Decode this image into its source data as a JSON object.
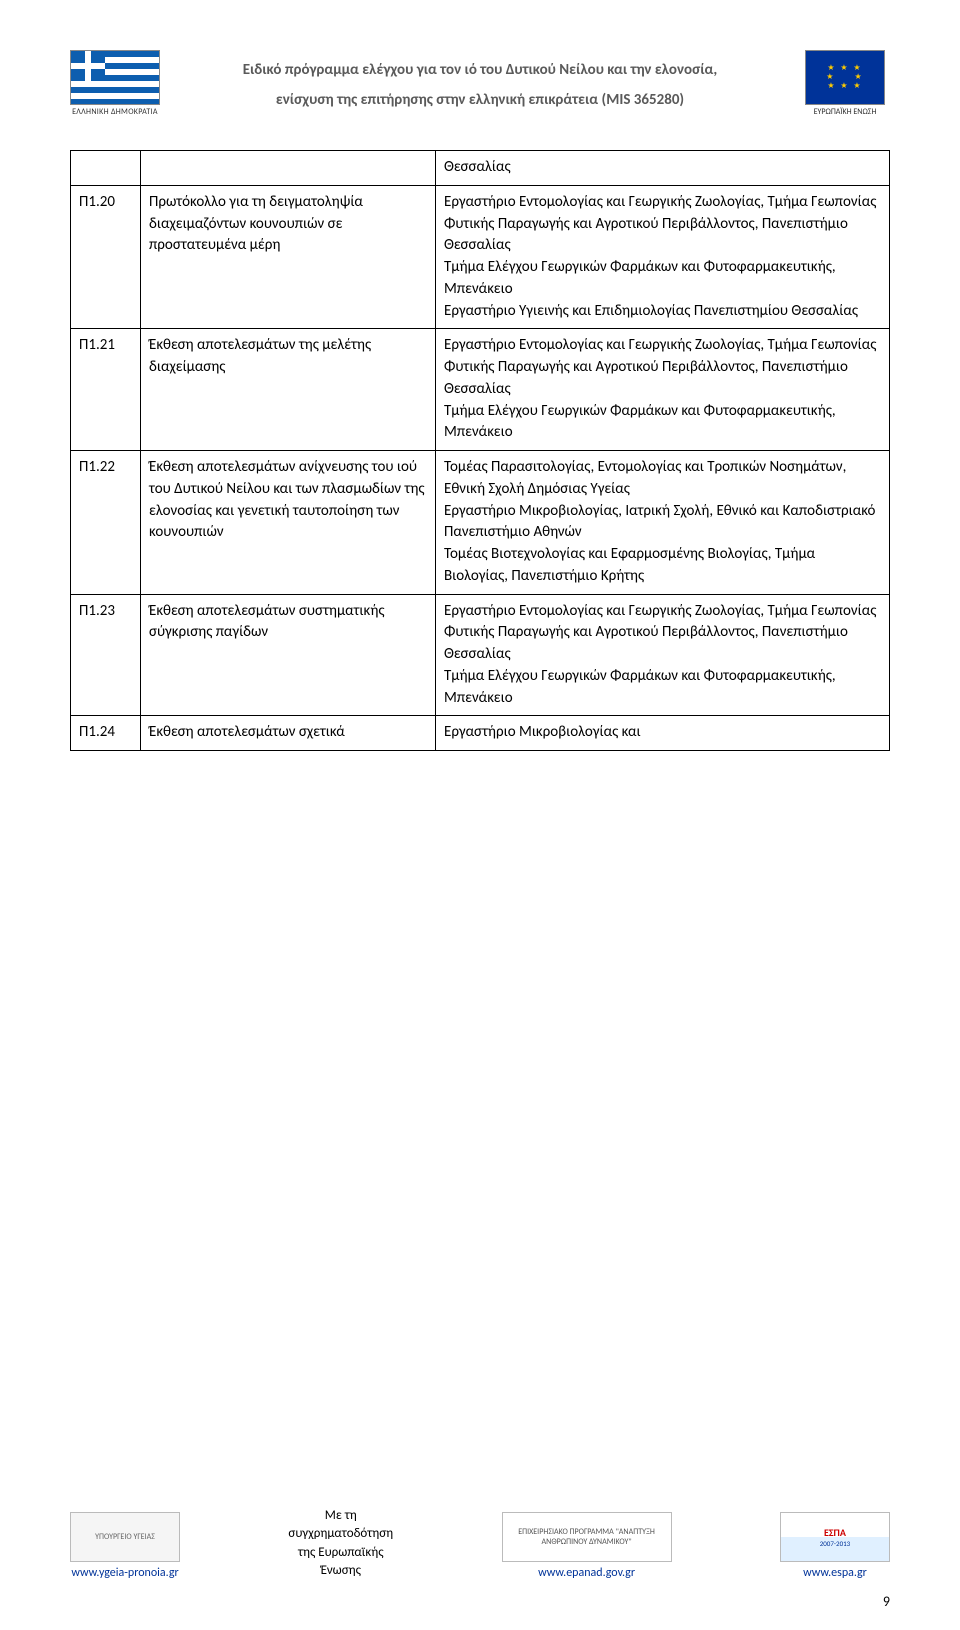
{
  "header": {
    "line1": "Ειδικό πρόγραμμα ελέγχου για τον ιό του Δυτικού Νείλου και την ελονοσία,",
    "line2": "ενίσχυση της επιτήρησης στην ελληνική επικράτεια (MIS 365280)",
    "gr_label": "ΕΛΛΗΝΙΚΗ ΔΗΜΟΚΡΑΤΙΑ",
    "eu_label": "ΕΥΡΩΠΑΪΚΗ ΕΝΩΣΗ"
  },
  "rows": [
    {
      "id": "",
      "desc": "",
      "org": "Θεσσαλίας"
    },
    {
      "id": "Π1.20",
      "desc": "Πρωτόκολλο για τη δειγματοληψία διαχειμαζόντων κουνουπιών σε προστατευμένα μέρη",
      "org": "Εργαστήριο Εντομολογίας και Γεωργικής Ζωολογίας, Τμήμα Γεωπονίας Φυτικής Παραγωγής και Αγροτικού Περιβάλλοντος, Πανεπιστήμιο Θεσσαλίας\nΤμήμα Ελέγχου Γεωργικών Φαρμάκων και Φυτοφαρμακευτικής, Μπενάκειο\nΕργαστήριο Υγιεινής και Επιδημιολογίας Πανεπιστημίου Θεσσαλίας"
    },
    {
      "id": "Π1.21",
      "desc": "Έκθεση αποτελεσμάτων της μελέτης διαχείμασης",
      "org": "Εργαστήριο Εντομολογίας και Γεωργικής Ζωολογίας, Τμήμα Γεωπονίας Φυτικής Παραγωγής και Αγροτικού Περιβάλλοντος, Πανεπιστήμιο Θεσσαλίας\nΤμήμα Ελέγχου Γεωργικών Φαρμάκων και Φυτοφαρμακευτικής, Μπενάκειο"
    },
    {
      "id": "Π1.22",
      "desc": "Έκθεση αποτελεσμάτων ανίχνευσης του ιού του Δυτικού Νείλου και των πλασμωδίων της ελονοσίας και γενετική ταυτοποίηση των κουνουπιών",
      "org": "Τομέας Παρασιτολογίας, Εντομολογίας και Τροπικών Νοσημάτων,  Εθνική Σχολή Δημόσιας Υγείας\nΕργαστήριο Μικροβιολογίας, Ιατρική Σχολή, Εθνικό και Καποδιστριακό Πανεπιστήμιο Αθηνών\nΤομέας Βιοτεχνολογίας και Εφαρμοσμένης Βιολογίας, Τμήμα Βιολογίας,  Πανεπιστήμιο Κρήτης"
    },
    {
      "id": "Π1.23",
      "desc": "Έκθεση αποτελεσμάτων συστηματικής σύγκρισης παγίδων",
      "org": "Εργαστήριο Εντομολογίας και Γεωργικής Ζωολογίας, Τμήμα Γεωπονίας Φυτικής Παραγωγής και Αγροτικού Περιβάλλοντος, Πανεπιστήμιο Θεσσαλίας\nΤμήμα Ελέγχου Γεωργικών Φαρμάκων και Φυτοφαρμακευτικής, Μπενάκειο"
    },
    {
      "id": "Π1.24",
      "desc": "Έκθεση αποτελεσμάτων σχετικά",
      "org": "Εργαστήριο Μικροβιολογίας και"
    }
  ],
  "footer": {
    "ygeia_url": "www.ygeia-pronoia.gr",
    "funding_l1": "Με τη",
    "funding_l2": "συγχρηματοδότηση",
    "funding_l3": "της Ευρωπαϊκής",
    "funding_l4": "Ένωσης",
    "epanad_url": "www.epanad.gov.gr",
    "epanad_label": "ΕΠΙΧΕΙΡΗΣΙΑΚΟ ΠΡΟΓΡΑΜΜΑ \"ΑΝΑΠΤΥΞΗ ΑΝΘΡΩΠΙΝΟΥ ΔΥΝΑΜΙΚΟΥ\"",
    "espa_url": "www.espa.gr",
    "espa_label": "ΕΣΠΑ",
    "espa_years": "2007-2013",
    "health_label": "ΥΠΟΥΡΓΕΙΟ ΥΓΕΙΑΣ"
  },
  "page_number": "9"
}
